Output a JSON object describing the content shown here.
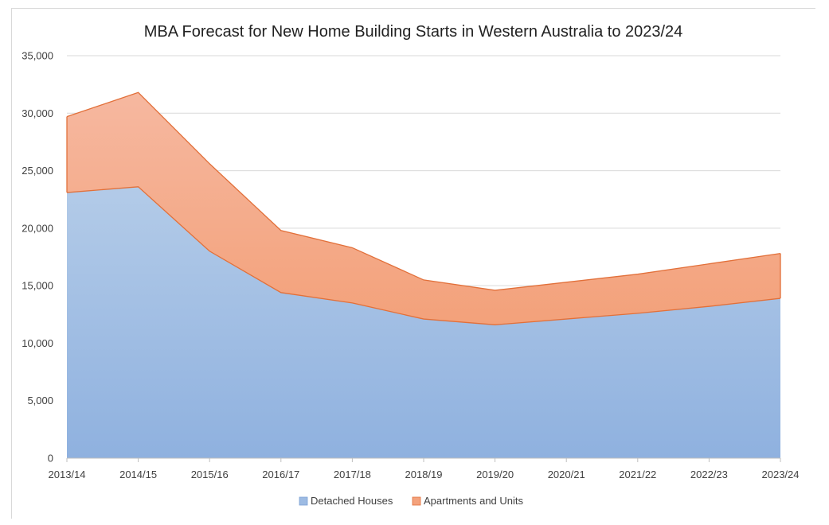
{
  "chart_data": {
    "type": "area",
    "stacked": true,
    "title": "MBA Forecast for New Home Building Starts in Western Australia to 2023/24",
    "xlabel": "",
    "ylabel": "",
    "categories": [
      "2013/14",
      "2014/15",
      "2015/16",
      "2016/17",
      "2017/18",
      "2018/19",
      "2019/20",
      "2020/21",
      "2021/22",
      "2022/23",
      "2023/24"
    ],
    "ylim": [
      0,
      35000
    ],
    "yticks": [
      0,
      5000,
      10000,
      15000,
      20000,
      25000,
      30000,
      35000
    ],
    "ytick_labels": [
      "0",
      "5,000",
      "10,000",
      "15,000",
      "20,000",
      "25,000",
      "30,000",
      "35,000"
    ],
    "grid": true,
    "legend_position": "bottom",
    "series": [
      {
        "name": "Detached Houses",
        "color": "#9dbbe3",
        "values": [
          23100,
          23600,
          18000,
          14400,
          13500,
          12100,
          11600,
          12100,
          12600,
          13200,
          13900
        ]
      },
      {
        "name": "Apartments and Units",
        "color": "#f4a27c",
        "values": [
          6600,
          8200,
          7600,
          5400,
          4800,
          3400,
          3000,
          3200,
          3400,
          3700,
          3900
        ]
      }
    ],
    "colors": {
      "houses_top": "#b3cbe8",
      "houses_bottom": "#8fb1df",
      "apartments_top": "#f6b8a0",
      "apartments_bottom": "#f3a17a",
      "apartments_line": "#e2703a",
      "axis": "#bfbfbf"
    }
  }
}
